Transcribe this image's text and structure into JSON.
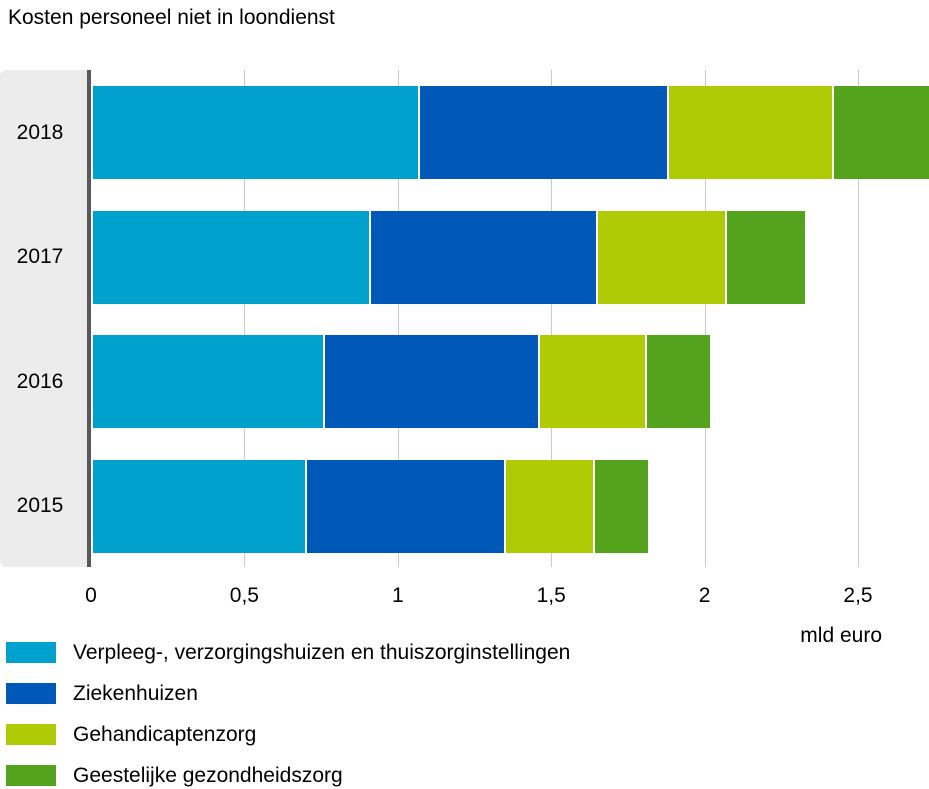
{
  "chart_data": {
    "type": "bar",
    "orientation": "horizontal",
    "stacked": true,
    "title": "Kosten personeel niet in loondienst",
    "categories": [
      "2018",
      "2017",
      "2016",
      "2015"
    ],
    "series": [
      {
        "name": "Verpleeg-, verzorgingshuizen en thuiszorginstellingen",
        "color": "#00a1cd",
        "values": [
          1.06,
          0.9,
          0.75,
          0.69
        ]
      },
      {
        "name": "Ziekenhuizen",
        "color": "#0058b8",
        "values": [
          0.81,
          0.74,
          0.7,
          0.65
        ]
      },
      {
        "name": "Gehandicaptenzorg",
        "color": "#afcb05",
        "values": [
          0.54,
          0.42,
          0.35,
          0.29
        ]
      },
      {
        "name": "Geestelijke gezondheidszorg",
        "color": "#53a31d",
        "values": [
          0.32,
          0.26,
          0.21,
          0.18
        ]
      }
    ],
    "totals": [
      2.73,
      2.32,
      2.01,
      1.81
    ],
    "x_axis": {
      "ticks": [
        0,
        0.5,
        1,
        1.5,
        2,
        2.5
      ],
      "tick_labels": [
        "0",
        "0,5",
        "1",
        "1,5",
        "2",
        "2,5"
      ],
      "unit_label": "mld euro",
      "range_visible": [
        0,
        2.73
      ]
    },
    "grid": true,
    "legend_position": "bottom"
  }
}
